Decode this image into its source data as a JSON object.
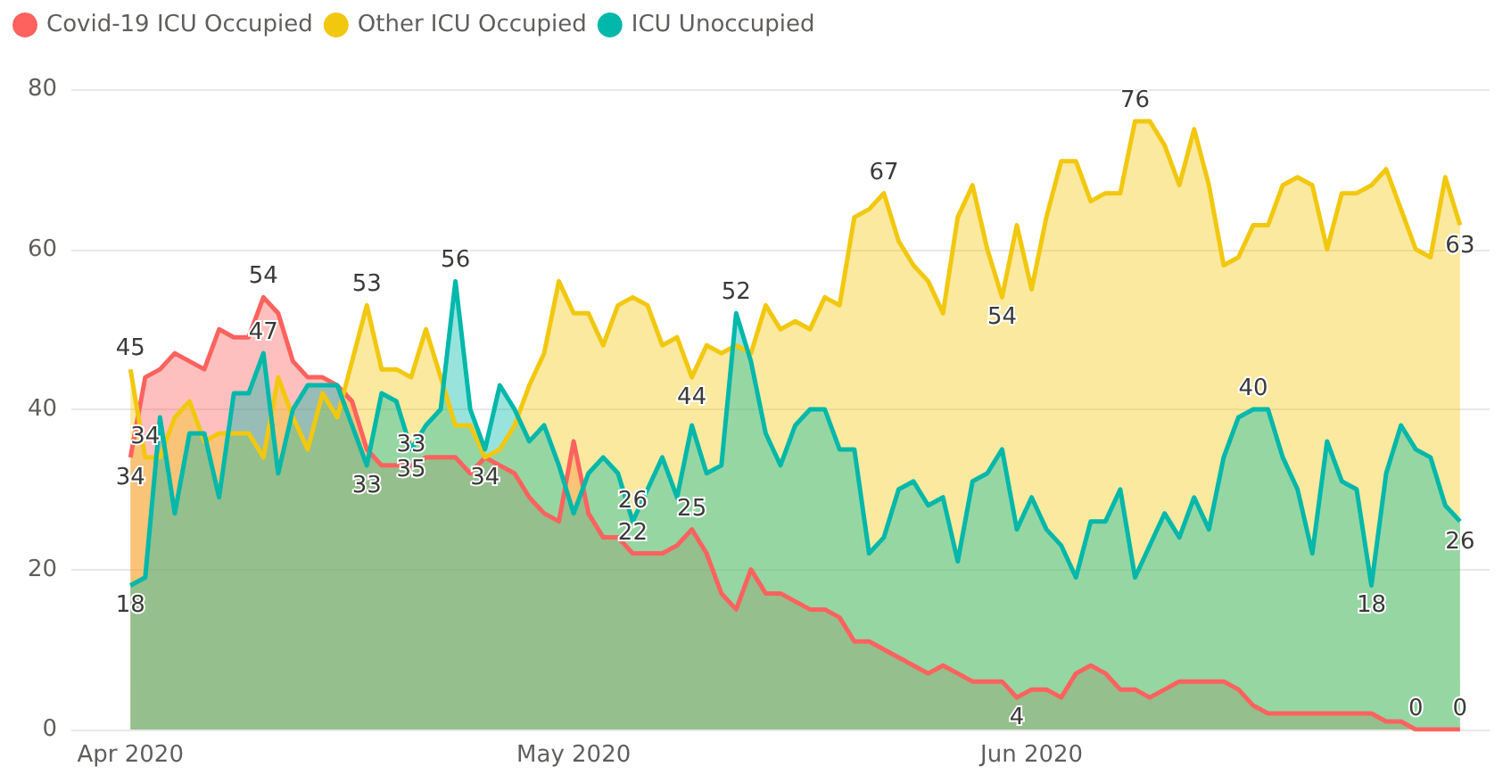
{
  "chart_data": {
    "type": "area",
    "legend": "top left",
    "grid": "y",
    "ylim": [
      0,
      80
    ],
    "yticks": [
      0,
      20,
      40,
      60,
      80
    ],
    "xlim": [
      "2020-03-28",
      "2020-07-02"
    ],
    "xticks": [
      {
        "value": "2020-04-01",
        "label": "Apr 2020"
      },
      {
        "value": "2020-05-01",
        "label": "May 2020"
      },
      {
        "value": "2020-06-01",
        "label": "Jun 2020"
      }
    ],
    "x": [
      "2020-04-01",
      "2020-04-02",
      "2020-04-03",
      "2020-04-04",
      "2020-04-05",
      "2020-04-06",
      "2020-04-07",
      "2020-04-08",
      "2020-04-09",
      "2020-04-10",
      "2020-04-11",
      "2020-04-12",
      "2020-04-13",
      "2020-04-14",
      "2020-04-15",
      "2020-04-16",
      "2020-04-17",
      "2020-04-18",
      "2020-04-19",
      "2020-04-20",
      "2020-04-21",
      "2020-04-22",
      "2020-04-23",
      "2020-04-24",
      "2020-04-25",
      "2020-04-26",
      "2020-04-27",
      "2020-04-28",
      "2020-04-29",
      "2020-04-30",
      "2020-05-01",
      "2020-05-02",
      "2020-05-03",
      "2020-05-04",
      "2020-05-05",
      "2020-05-06",
      "2020-05-07",
      "2020-05-08",
      "2020-05-09",
      "2020-05-10",
      "2020-05-11",
      "2020-05-12",
      "2020-05-13",
      "2020-05-14",
      "2020-05-15",
      "2020-05-16",
      "2020-05-17",
      "2020-05-18",
      "2020-05-19",
      "2020-05-20",
      "2020-05-21",
      "2020-05-22",
      "2020-05-23",
      "2020-05-24",
      "2020-05-25",
      "2020-05-26",
      "2020-05-27",
      "2020-05-28",
      "2020-05-29",
      "2020-05-30",
      "2020-05-31",
      "2020-06-01",
      "2020-06-02",
      "2020-06-03",
      "2020-06-04",
      "2020-06-05",
      "2020-06-06",
      "2020-06-07",
      "2020-06-08",
      "2020-06-09",
      "2020-06-10",
      "2020-06-11",
      "2020-06-12",
      "2020-06-13",
      "2020-06-14",
      "2020-06-15",
      "2020-06-16",
      "2020-06-17",
      "2020-06-18",
      "2020-06-19",
      "2020-06-20",
      "2020-06-21",
      "2020-06-22",
      "2020-06-23",
      "2020-06-24",
      "2020-06-25",
      "2020-06-26",
      "2020-06-27",
      "2020-06-28",
      "2020-06-29",
      "2020-06-30"
    ],
    "series": [
      {
        "name": "Covid-19 ICU Occupied",
        "color": "#fd625e",
        "values": [
          34,
          44,
          45,
          47,
          46,
          45,
          50,
          49,
          49,
          54,
          52,
          46,
          44,
          44,
          43,
          41,
          35,
          33,
          33,
          33,
          34,
          34,
          34,
          32,
          34,
          33,
          32,
          29,
          27,
          26,
          36,
          27,
          24,
          24,
          22,
          22,
          22,
          23,
          25,
          22,
          17,
          15,
          20,
          17,
          17,
          16,
          15,
          15,
          14,
          11,
          11,
          10,
          9,
          8,
          7,
          8,
          7,
          6,
          6,
          6,
          4,
          5,
          5,
          4,
          7,
          8,
          7,
          5,
          5,
          4,
          5,
          6,
          6,
          6,
          6,
          5,
          3,
          2,
          2,
          2,
          2,
          2,
          2,
          2,
          2,
          1,
          1,
          0,
          0,
          0,
          0
        ],
        "value_labels": [
          "34",
          null,
          null,
          null,
          null,
          null,
          null,
          null,
          null,
          "54",
          null,
          null,
          null,
          null,
          null,
          null,
          null,
          null,
          null,
          "33",
          null,
          null,
          null,
          null,
          null,
          null,
          null,
          null,
          null,
          null,
          null,
          null,
          null,
          null,
          "22",
          null,
          null,
          null,
          "25",
          null,
          null,
          null,
          null,
          null,
          null,
          null,
          null,
          null,
          null,
          null,
          null,
          null,
          null,
          null,
          null,
          null,
          null,
          null,
          null,
          null,
          "4",
          null,
          null,
          null,
          null,
          null,
          null,
          null,
          null,
          null,
          null,
          null,
          null,
          null,
          null,
          null,
          null,
          null,
          null,
          null,
          null,
          null,
          null,
          null,
          null,
          null,
          null,
          "0",
          null,
          null,
          "0"
        ]
      },
      {
        "name": "Other ICU Occupied",
        "color": "#f2c80f",
        "values": [
          45,
          34,
          34,
          39,
          41,
          36,
          37,
          37,
          37,
          34,
          44,
          39,
          35,
          42,
          39,
          46,
          53,
          45,
          45,
          44,
          50,
          44,
          38,
          38,
          34,
          35,
          38,
          43,
          47,
          56,
          52,
          52,
          48,
          53,
          54,
          53,
          48,
          49,
          44,
          48,
          47,
          48,
          47,
          53,
          50,
          51,
          50,
          54,
          53,
          64,
          65,
          67,
          61,
          58,
          56,
          52,
          64,
          68,
          60,
          54,
          63,
          55,
          64,
          71,
          71,
          66,
          67,
          67,
          76,
          76,
          73,
          68,
          75,
          68,
          58,
          59,
          63,
          63,
          68,
          69,
          68,
          60,
          67,
          67,
          68,
          70,
          65,
          60,
          59,
          69,
          63
        ],
        "value_labels": [
          "45",
          "34",
          null,
          null,
          null,
          null,
          null,
          null,
          null,
          null,
          null,
          null,
          null,
          null,
          null,
          null,
          "53",
          null,
          null,
          null,
          null,
          null,
          null,
          null,
          "34",
          null,
          null,
          null,
          null,
          null,
          null,
          null,
          null,
          null,
          null,
          null,
          null,
          null,
          "44",
          null,
          null,
          null,
          null,
          null,
          null,
          null,
          null,
          null,
          null,
          null,
          null,
          "67",
          null,
          null,
          null,
          null,
          null,
          null,
          null,
          "54",
          null,
          null,
          null,
          null,
          null,
          null,
          null,
          null,
          "76",
          null,
          null,
          null,
          null,
          null,
          null,
          null,
          null,
          null,
          null,
          null,
          null,
          null,
          null,
          null,
          null,
          null,
          null,
          null,
          null,
          null,
          "63"
        ]
      },
      {
        "name": "ICU Unoccupied",
        "color": "#01b8aa",
        "values": [
          18,
          19,
          39,
          27,
          37,
          37,
          29,
          42,
          42,
          47,
          32,
          40,
          43,
          43,
          43,
          38,
          33,
          42,
          41,
          35,
          38,
          40,
          56,
          40,
          35,
          43,
          40,
          36,
          38,
          33,
          27,
          32,
          34,
          32,
          26,
          30,
          34,
          29,
          38,
          32,
          33,
          52,
          46,
          37,
          33,
          38,
          40,
          40,
          35,
          35,
          22,
          24,
          30,
          31,
          28,
          29,
          21,
          31,
          32,
          35,
          25,
          29,
          25,
          23,
          19,
          26,
          26,
          30,
          19,
          23,
          27,
          24,
          29,
          25,
          34,
          39,
          40,
          40,
          34,
          30,
          22,
          36,
          31,
          30,
          18,
          32,
          38,
          35,
          34,
          28,
          26
        ],
        "value_labels": [
          "18",
          null,
          null,
          null,
          null,
          null,
          null,
          null,
          null,
          "47",
          null,
          null,
          null,
          null,
          null,
          null,
          "33",
          null,
          null,
          "35",
          null,
          null,
          "56",
          null,
          null,
          null,
          null,
          null,
          null,
          null,
          null,
          null,
          null,
          null,
          "26",
          null,
          null,
          null,
          null,
          null,
          null,
          "52",
          null,
          null,
          null,
          null,
          null,
          null,
          null,
          null,
          null,
          null,
          null,
          null,
          null,
          null,
          null,
          null,
          null,
          null,
          null,
          null,
          null,
          null,
          null,
          null,
          null,
          null,
          null,
          null,
          null,
          null,
          null,
          null,
          null,
          null,
          "40",
          null,
          null,
          null,
          null,
          null,
          null,
          null,
          "18",
          null,
          null,
          null,
          null,
          null,
          "26"
        ]
      }
    ]
  }
}
